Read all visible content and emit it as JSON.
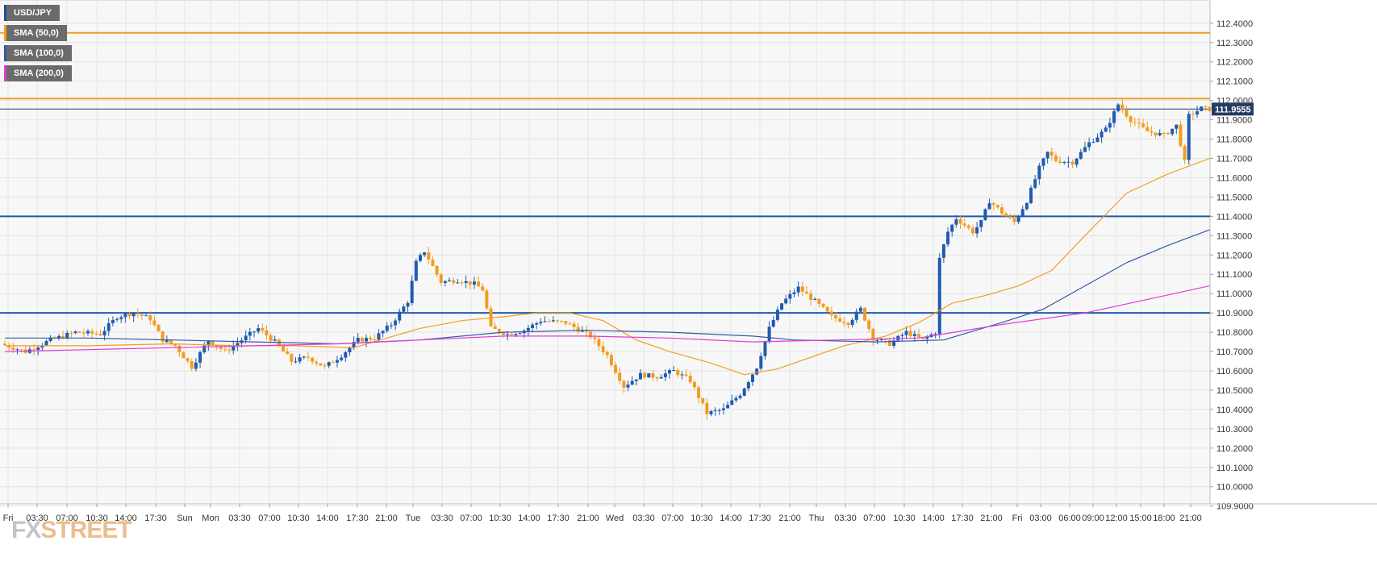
{
  "chart_data": {
    "type": "candlestick",
    "symbol": "USD/JPY",
    "legend": [
      {
        "label": "USD/JPY",
        "color": "#1f4e9c"
      },
      {
        "label": "SMA (50,0)",
        "color": "#f39c1f"
      },
      {
        "label": "SMA (100,0)",
        "color": "#2e5aa6"
      },
      {
        "label": "SMA (200,0)",
        "color": "#e23ad8"
      }
    ],
    "ylim": [
      109.85,
      112.45
    ],
    "y_ticks": [
      "109.9000",
      "110.0000",
      "110.1000",
      "110.2000",
      "110.3000",
      "110.4000",
      "110.5000",
      "110.6000",
      "110.7000",
      "110.8000",
      "110.9000",
      "111.0000",
      "111.1000",
      "111.2000",
      "111.3000",
      "111.4000",
      "111.5000",
      "111.6000",
      "111.7000",
      "111.8000",
      "111.9000",
      "112.0000",
      "112.1000",
      "112.2000",
      "112.3000",
      "112.4000"
    ],
    "x_ticks": [
      "Fri",
      "03:30",
      "07:00",
      "10:30",
      "14:00",
      "17:30",
      "Sun",
      "Mon",
      "03:30",
      "07:00",
      "10:30",
      "14:00",
      "17:30",
      "21:00",
      "Tue",
      "03:30",
      "07:00",
      "10:30",
      "14:00",
      "17:30",
      "21:00",
      "Wed",
      "03:30",
      "07:00",
      "10:30",
      "14:00",
      "17:30",
      "21:00",
      "Thu",
      "03:30",
      "07:00",
      "10:30",
      "14:00",
      "17:30",
      "21:00",
      "Fri",
      "03:00",
      "06:00",
      "09:00",
      "12:00",
      "15:00",
      "18:00",
      "21:00"
    ],
    "last_price": "111.9555",
    "last_price_value": 111.9555,
    "horizontal_levels": [
      {
        "value": 112.35,
        "color": "#f39c1f"
      },
      {
        "value": 112.01,
        "color": "#f39c1f"
      },
      {
        "value": 111.4,
        "color": "#1f5bb0"
      },
      {
        "value": 110.9,
        "color": "#1f5bb0"
      }
    ],
    "bull_color": "#1f5bb0",
    "bear_color": "#f39c1f",
    "price_path": [
      [
        0,
        110.74
      ],
      [
        6,
        110.7
      ],
      [
        12,
        110.76
      ],
      [
        18,
        110.8
      ],
      [
        24,
        110.79
      ],
      [
        28,
        110.88
      ],
      [
        32,
        110.9
      ],
      [
        36,
        110.87
      ],
      [
        39,
        110.76
      ],
      [
        42,
        110.73
      ],
      [
        46,
        110.62
      ],
      [
        50,
        110.76
      ],
      [
        54,
        110.7
      ],
      [
        58,
        110.76
      ],
      [
        62,
        110.82
      ],
      [
        66,
        110.75
      ],
      [
        70,
        110.65
      ],
      [
        74,
        110.67
      ],
      [
        78,
        110.62
      ],
      [
        82,
        110.68
      ],
      [
        86,
        110.76
      ],
      [
        90,
        110.77
      ],
      [
        94,
        110.84
      ],
      [
        98,
        110.96
      ],
      [
        100,
        111.16
      ],
      [
        102,
        111.22
      ],
      [
        106,
        111.06
      ],
      [
        110,
        111.07
      ],
      [
        114,
        111.05
      ],
      [
        116,
        111.02
      ],
      [
        118,
        110.82
      ],
      [
        122,
        110.79
      ],
      [
        126,
        110.81
      ],
      [
        130,
        110.86
      ],
      [
        136,
        110.85
      ],
      [
        142,
        110.78
      ],
      [
        146,
        110.68
      ],
      [
        150,
        110.52
      ],
      [
        154,
        110.58
      ],
      [
        158,
        110.57
      ],
      [
        162,
        110.6
      ],
      [
        166,
        110.55
      ],
      [
        170,
        110.38
      ],
      [
        174,
        110.4
      ],
      [
        178,
        110.48
      ],
      [
        182,
        110.62
      ],
      [
        185,
        110.82
      ],
      [
        188,
        110.95
      ],
      [
        192,
        111.03
      ],
      [
        196,
        110.96
      ],
      [
        200,
        110.88
      ],
      [
        204,
        110.85
      ],
      [
        207,
        110.92
      ],
      [
        210,
        110.77
      ],
      [
        214,
        110.74
      ],
      [
        218,
        110.8
      ],
      [
        222,
        110.76
      ],
      [
        225,
        110.8
      ],
      [
        226,
        111.18
      ],
      [
        228,
        111.32
      ],
      [
        230,
        111.39
      ],
      [
        234,
        111.32
      ],
      [
        236,
        111.37
      ],
      [
        238,
        111.48
      ],
      [
        242,
        111.4
      ],
      [
        244,
        111.37
      ],
      [
        247,
        111.48
      ],
      [
        250,
        111.65
      ],
      [
        252,
        111.73
      ],
      [
        254,
        111.69
      ],
      [
        258,
        111.68
      ],
      [
        262,
        111.78
      ],
      [
        266,
        111.85
      ],
      [
        269,
        111.98
      ],
      [
        272,
        111.9
      ],
      [
        276,
        111.84
      ],
      [
        280,
        111.82
      ],
      [
        283,
        111.87
      ],
      [
        285,
        111.68
      ],
      [
        286,
        111.92
      ],
      [
        289,
        111.96
      ],
      [
        290,
        111.9555
      ]
    ],
    "sma": [
      {
        "name": "SMA (50,0)",
        "color": "#f39c1f",
        "points": [
          [
            0,
            110.73
          ],
          [
            20,
            110.73
          ],
          [
            40,
            110.74
          ],
          [
            56,
            110.73
          ],
          [
            70,
            110.73
          ],
          [
            84,
            110.72
          ],
          [
            100,
            110.82
          ],
          [
            110,
            110.86
          ],
          [
            120,
            110.88
          ],
          [
            128,
            110.9
          ],
          [
            136,
            110.9
          ],
          [
            144,
            110.86
          ],
          [
            152,
            110.76
          ],
          [
            160,
            110.7
          ],
          [
            170,
            110.64
          ],
          [
            178,
            110.58
          ],
          [
            186,
            110.61
          ],
          [
            194,
            110.67
          ],
          [
            202,
            110.73
          ],
          [
            212,
            110.78
          ],
          [
            220,
            110.85
          ],
          [
            228,
            110.95
          ],
          [
            236,
            110.99
          ],
          [
            244,
            111.04
          ],
          [
            252,
            111.12
          ],
          [
            260,
            111.3
          ],
          [
            270,
            111.52
          ],
          [
            280,
            111.62
          ],
          [
            290,
            111.7
          ]
        ]
      },
      {
        "name": "SMA (100,0)",
        "color": "#2e5aa6",
        "points": [
          [
            0,
            110.77
          ],
          [
            20,
            110.77
          ],
          [
            40,
            110.76
          ],
          [
            60,
            110.75
          ],
          [
            80,
            110.74
          ],
          [
            100,
            110.76
          ],
          [
            120,
            110.8
          ],
          [
            140,
            110.81
          ],
          [
            160,
            110.8
          ],
          [
            180,
            110.78
          ],
          [
            190,
            110.76
          ],
          [
            210,
            110.75
          ],
          [
            226,
            110.76
          ],
          [
            240,
            110.85
          ],
          [
            250,
            110.92
          ],
          [
            260,
            111.04
          ],
          [
            270,
            111.16
          ],
          [
            280,
            111.25
          ],
          [
            290,
            111.33
          ]
        ]
      },
      {
        "name": "SMA (200,0)",
        "color": "#e23ad8",
        "points": [
          [
            0,
            110.7
          ],
          [
            20,
            110.71
          ],
          [
            40,
            110.72
          ],
          [
            60,
            110.73
          ],
          [
            80,
            110.74
          ],
          [
            100,
            110.76
          ],
          [
            120,
            110.78
          ],
          [
            140,
            110.78
          ],
          [
            160,
            110.77
          ],
          [
            180,
            110.75
          ],
          [
            200,
            110.76
          ],
          [
            220,
            110.77
          ],
          [
            240,
            110.84
          ],
          [
            260,
            110.9
          ],
          [
            275,
            110.97
          ],
          [
            290,
            111.04
          ]
        ]
      }
    ]
  },
  "watermark": {
    "fx": "FX",
    "street": "STREET"
  }
}
